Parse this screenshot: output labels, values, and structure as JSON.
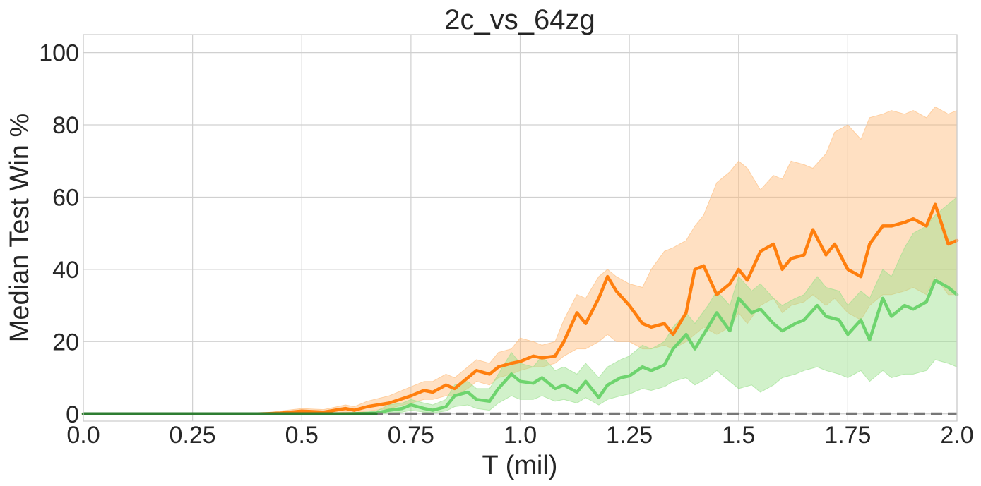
{
  "chart_data": {
    "type": "line",
    "title": "2c_vs_64zg",
    "xlabel": "T (mil)",
    "ylabel": "Median Test Win %",
    "xlim": [
      0,
      2.0
    ],
    "ylim": [
      -2,
      105
    ],
    "x_ticks": [
      0.0,
      0.25,
      0.5,
      0.75,
      1.0,
      1.25,
      1.5,
      1.75,
      2.0
    ],
    "x_tick_labels": [
      "0.0",
      "0.25",
      "0.5",
      "0.75",
      "1.0",
      "1.25",
      "1.5",
      "1.75",
      "2.0"
    ],
    "y_ticks": [
      0,
      20,
      40,
      60,
      80,
      100
    ],
    "y_tick_labels": [
      "0",
      "20",
      "40",
      "60",
      "80",
      "100"
    ],
    "grid": true,
    "legend": "none",
    "series": [
      {
        "color": "#ff7f0e",
        "band_color": "#ffbb78",
        "line_style": "solid",
        "x": [
          0.0,
          0.1,
          0.2,
          0.3,
          0.4,
          0.45,
          0.5,
          0.55,
          0.6,
          0.62,
          0.65,
          0.7,
          0.75,
          0.78,
          0.8,
          0.83,
          0.85,
          0.88,
          0.9,
          0.93,
          0.95,
          0.98,
          1.0,
          1.03,
          1.05,
          1.08,
          1.1,
          1.13,
          1.15,
          1.18,
          1.2,
          1.22,
          1.25,
          1.28,
          1.3,
          1.33,
          1.35,
          1.38,
          1.4,
          1.42,
          1.45,
          1.48,
          1.5,
          1.52,
          1.55,
          1.58,
          1.6,
          1.62,
          1.65,
          1.67,
          1.7,
          1.72,
          1.75,
          1.78,
          1.8,
          1.83,
          1.85,
          1.88,
          1.9,
          1.93,
          1.95,
          1.98,
          2.0
        ],
        "y": [
          0,
          0,
          0,
          0,
          0,
          0.2,
          0.8,
          0.5,
          1.5,
          1.0,
          2.0,
          3.0,
          5.0,
          6.5,
          6.0,
          8.0,
          7.0,
          10.0,
          12.0,
          11.0,
          13.0,
          14.0,
          14.5,
          16.0,
          15.5,
          16.0,
          20.0,
          28.0,
          25.0,
          32.0,
          38.0,
          34.0,
          30.0,
          25.0,
          24.0,
          25.0,
          22.0,
          28.0,
          40.0,
          41.0,
          33.0,
          36.0,
          40.0,
          37.0,
          45.0,
          47.0,
          40.0,
          43.0,
          44.0,
          51.0,
          44.0,
          47.0,
          40.0,
          38.0,
          47.0,
          52.0,
          52.0,
          53.0,
          54.0,
          52.0,
          58.0,
          47.0,
          48.0
        ],
        "lower": [
          0,
          0,
          0,
          0,
          0,
          0,
          0,
          0,
          0.5,
          0.3,
          0.8,
          1.5,
          3.0,
          4.0,
          4.0,
          5.0,
          5.0,
          7.0,
          9.0,
          8.0,
          10.0,
          11.0,
          12.0,
          13.0,
          13.0,
          14.0,
          16.0,
          18.0,
          18.0,
          20.0,
          22.0,
          20.0,
          20.0,
          18.0,
          18.0,
          19.0,
          18.0,
          20.0,
          22.0,
          24.0,
          22.0,
          24.0,
          28.0,
          25.0,
          30.0,
          32.0,
          28.0,
          30.0,
          31.0,
          33.0,
          30.0,
          32.0,
          28.0,
          26.0,
          30.0,
          33.0,
          33.0,
          34.0,
          35.0,
          33.0,
          38.0,
          33.0,
          33.0
        ],
        "upper": [
          0,
          0,
          0,
          0,
          0,
          0.8,
          1.5,
          1.2,
          2.5,
          2.0,
          3.5,
          5.0,
          7.5,
          9.0,
          9.0,
          11.0,
          10.0,
          13.0,
          15.0,
          14.0,
          17.0,
          18.0,
          21.0,
          20.0,
          19.0,
          20.0,
          26.0,
          33.0,
          32.0,
          38.0,
          40.0,
          38.0,
          36.0,
          35.0,
          40.0,
          45.0,
          46.0,
          48.0,
          52.0,
          55.0,
          64.0,
          67.0,
          70.0,
          68.0,
          62.0,
          66.0,
          65.0,
          70.0,
          69.0,
          68.0,
          72.0,
          78.0,
          80.0,
          76.0,
          82.0,
          83.0,
          84.0,
          83.0,
          84.0,
          82.0,
          85.0,
          83.0,
          84.0
        ]
      },
      {
        "color": "#6ed46e",
        "band_color": "#98df8a",
        "line_style": "solid",
        "x": [
          0.0,
          0.1,
          0.2,
          0.3,
          0.4,
          0.5,
          0.6,
          0.67,
          0.7,
          0.73,
          0.75,
          0.78,
          0.8,
          0.83,
          0.85,
          0.88,
          0.9,
          0.93,
          0.95,
          0.98,
          1.0,
          1.03,
          1.05,
          1.08,
          1.1,
          1.13,
          1.15,
          1.18,
          1.2,
          1.23,
          1.25,
          1.28,
          1.3,
          1.33,
          1.35,
          1.38,
          1.4,
          1.43,
          1.45,
          1.48,
          1.5,
          1.53,
          1.55,
          1.58,
          1.6,
          1.63,
          1.65,
          1.68,
          1.7,
          1.73,
          1.75,
          1.78,
          1.8,
          1.83,
          1.85,
          1.88,
          1.9,
          1.93,
          1.95,
          1.98,
          2.0
        ],
        "y": [
          0,
          0,
          0,
          0,
          0,
          0,
          0,
          0.2,
          1.0,
          1.5,
          2.5,
          1.5,
          1.0,
          2.0,
          5.0,
          6.0,
          4.0,
          3.5,
          7.0,
          11.0,
          9.0,
          8.5,
          10.0,
          7.0,
          8.0,
          6.0,
          9.0,
          4.5,
          8.0,
          10.0,
          10.5,
          13.0,
          12.0,
          13.5,
          18.0,
          22.0,
          18.0,
          24.0,
          28.0,
          23.0,
          32.0,
          28.0,
          29.0,
          25.0,
          23.0,
          25.0,
          26.0,
          30.0,
          27.0,
          26.0,
          22.0,
          26.0,
          20.5,
          32.0,
          27.0,
          30.0,
          29.0,
          31.0,
          37.0,
          35.0,
          33.0
        ],
        "lower": [
          0,
          0,
          0,
          0,
          0,
          0,
          0,
          0,
          0.2,
          0.5,
          1.0,
          0.5,
          0.3,
          0.8,
          2.0,
          2.5,
          1.5,
          1.0,
          3.0,
          5.0,
          4.0,
          4.0,
          5.0,
          3.5,
          4.0,
          3.0,
          4.5,
          2.5,
          4.0,
          5.0,
          5.5,
          7.0,
          6.5,
          7.5,
          9.0,
          10.0,
          8.0,
          10.0,
          12.0,
          9.0,
          7.0,
          8.0,
          6.0,
          8.0,
          10.0,
          11.0,
          12.0,
          13.0,
          12.0,
          11.0,
          10.0,
          12.0,
          9.0,
          12.0,
          10.0,
          11.0,
          11.0,
          12.0,
          15.0,
          14.0,
          13.0
        ],
        "upper": [
          0,
          0,
          0,
          0,
          0,
          0,
          0,
          0.8,
          2.5,
          3.0,
          4.0,
          3.0,
          2.5,
          4.0,
          8.0,
          9.0,
          7.0,
          7.0,
          11.0,
          17.0,
          14.0,
          13.0,
          16.0,
          12.0,
          13.0,
          11.0,
          14.0,
          10.0,
          13.0,
          15.0,
          16.0,
          19.0,
          18.0,
          20.0,
          24.0,
          28.0,
          25.0,
          30.0,
          34.0,
          30.0,
          38.0,
          34.0,
          36.0,
          32.0,
          30.0,
          32.0,
          33.0,
          38.0,
          35.0,
          34.0,
          30.0,
          34.0,
          32.0,
          40.0,
          38.0,
          46.0,
          50.0,
          52.0,
          55.0,
          58.0,
          60.0
        ]
      },
      {
        "color": "#777777",
        "line_style": "dashed",
        "x": [
          0.0,
          2.0
        ],
        "y": [
          0,
          0
        ]
      },
      {
        "color": "#2e7d32",
        "line_style": "solid",
        "x": [
          0.0,
          0.67
        ],
        "y": [
          0,
          0
        ]
      }
    ]
  }
}
